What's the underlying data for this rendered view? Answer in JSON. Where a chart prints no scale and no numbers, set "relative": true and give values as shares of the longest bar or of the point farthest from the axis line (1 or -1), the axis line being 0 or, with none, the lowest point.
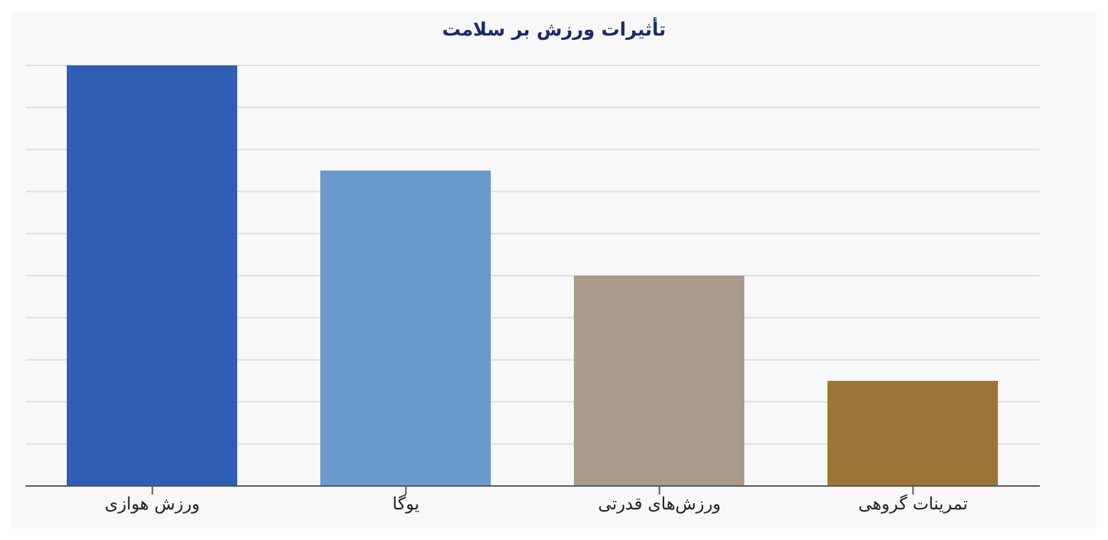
{
  "chart_data": {
    "type": "bar",
    "title": "تأثیرات ورزش بر سلامت",
    "categories": [
      "ورزش هوازی",
      "یوگا",
      "ورزش‌های قدرتی",
      "تمرینات گروهی"
    ],
    "values": [
      1,
      0.75,
      0.5,
      0.25
    ],
    "colors": [
      "#2f5eb4",
      "#6a9acb",
      "#a99a8c",
      "#9c7636"
    ],
    "relative": true,
    "grid": "y"
  }
}
